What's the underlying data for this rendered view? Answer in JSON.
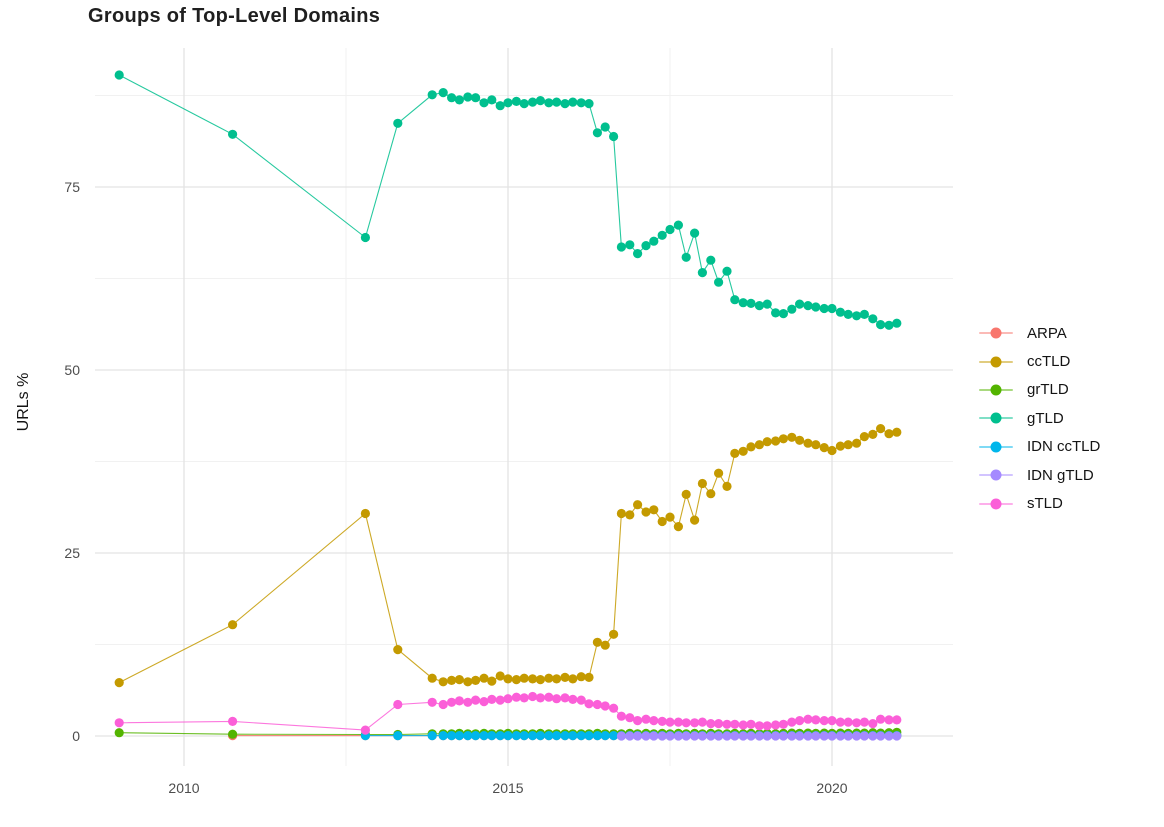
{
  "title": "Groups of Top-Level Domains",
  "y_axis": {
    "label": "URLs %",
    "ticks": [
      "0",
      "25",
      "50",
      "75"
    ]
  },
  "x_axis": {
    "ticks": [
      "2010",
      "2015",
      "2020"
    ]
  },
  "colors": {
    "background": "#FFFFFF",
    "grid_major": "#E3E3E3",
    "grid_minor": "#F1F1F1",
    "tick_label": "#4D4D4D",
    "title_text": "#1F1F1F"
  },
  "legend": {
    "position": "right",
    "items": [
      {
        "label": "ARPA",
        "color": "#F8766D"
      },
      {
        "label": "ccTLD",
        "color": "#C49A00"
      },
      {
        "label": "grTLD",
        "color": "#53B400"
      },
      {
        "label": "gTLD",
        "color": "#00BF8E"
      },
      {
        "label": "IDN ccTLD",
        "color": "#00B6EB"
      },
      {
        "label": "IDN gTLD",
        "color": "#A58AFF"
      },
      {
        "label": "sTLD",
        "color": "#FB5FD8"
      }
    ]
  },
  "chart_data": {
    "type": "line",
    "title": "Groups of Top-Level Domains",
    "xlabel": "",
    "ylabel": "URLs %",
    "xlim": [
      2008.6,
      2021.8
    ],
    "ylim": [
      -4,
      94
    ],
    "x_ticks": [
      2010,
      2015,
      2020
    ],
    "x_minor": [
      2012.5,
      2017.5
    ],
    "y_ticks": [
      0,
      25,
      50,
      75
    ],
    "y_minor": [
      12.5,
      37.5,
      62.5,
      87.5
    ],
    "grid": "major+minor",
    "legend_position": "right",
    "x_dense": [
      2014,
      2014.13,
      2014.25,
      2014.38,
      2014.5,
      2014.63,
      2014.75,
      2014.88,
      2015,
      2015.13,
      2015.25,
      2015.38,
      2015.5,
      2015.63,
      2015.75,
      2015.88,
      2016,
      2016.13,
      2016.25,
      2016.38,
      2016.5,
      2016.63,
      2016.75,
      2016.88,
      2017,
      2017.13,
      2017.25,
      2017.38,
      2017.5,
      2017.63,
      2017.75,
      2017.88,
      2018,
      2018.13,
      2018.25,
      2018.38,
      2018.5,
      2018.63,
      2018.75,
      2018.88,
      2019,
      2019.13,
      2019.25,
      2019.38,
      2019.5,
      2019.63,
      2019.75,
      2019.88,
      2020,
      2020.13,
      2020.25,
      2020.38,
      2020.5,
      2020.63,
      2020.75,
      2020.88,
      2021
    ],
    "series": [
      {
        "name": "ARPA",
        "color": "#F8766D",
        "x_pre": [
          2010.75,
          2012.8,
          2013.3,
          2013.83
        ],
        "y_pre": [
          0.05,
          0.05,
          0.05,
          0.05
        ],
        "y_dense_const": 0.05
      },
      {
        "name": "ccTLD",
        "color": "#C49A00",
        "x_pre": [
          2009,
          2010.75,
          2012.8,
          2013.3,
          2013.83
        ],
        "y_pre": [
          7.3,
          15.2,
          30.4,
          11.8,
          7.9
        ],
        "y_dense": [
          7.4,
          7.6,
          7.7,
          7.4,
          7.6,
          7.9,
          7.5,
          8.2,
          7.8,
          7.7,
          7.9,
          7.8,
          7.7,
          7.9,
          7.8,
          8.0,
          7.8,
          8.1,
          8.0,
          12.8,
          12.4,
          13.9,
          30.4,
          30.2,
          31.6,
          30.6,
          30.9,
          29.3,
          29.9,
          28.6,
          33.0,
          29.5,
          34.5,
          33.1,
          35.9,
          34.1,
          38.6,
          38.9,
          39.5,
          39.8,
          40.2,
          40.3,
          40.6,
          40.8,
          40.4,
          40.0,
          39.8,
          39.4,
          39.0,
          39.6,
          39.8,
          40.0,
          40.9,
          41.2,
          42.0,
          41.3,
          41.5
        ]
      },
      {
        "name": "grTLD",
        "color": "#53B400",
        "x_pre": [
          2009,
          2010.75,
          2012.8,
          2013.3,
          2013.83
        ],
        "y_pre": [
          0.45,
          0.25,
          0.2,
          0.2,
          0.3
        ],
        "y_dense": [
          0.3,
          0.3,
          0.35,
          0.3,
          0.3,
          0.35,
          0.3,
          0.3,
          0.35,
          0.3,
          0.3,
          0.3,
          0.35,
          0.3,
          0.3,
          0.3,
          0.3,
          0.3,
          0.3,
          0.35,
          0.3,
          0.3,
          0.3,
          0.35,
          0.3,
          0.35,
          0.3,
          0.35,
          0.3,
          0.35,
          0.3,
          0.35,
          0.3,
          0.35,
          0.3,
          0.3,
          0.35,
          0.3,
          0.35,
          0.3,
          0.35,
          0.3,
          0.35,
          0.4,
          0.35,
          0.4,
          0.35,
          0.4,
          0.35,
          0.4,
          0.35,
          0.4,
          0.4,
          0.45,
          0.4,
          0.45,
          0.5
        ]
      },
      {
        "name": "gTLD",
        "color": "#00BF8E",
        "x_pre": [
          2009,
          2010.75,
          2012.8,
          2013.3,
          2013.83
        ],
        "y_pre": [
          90.3,
          82.2,
          68.1,
          83.7,
          87.6
        ],
        "y_dense": [
          87.9,
          87.2,
          86.9,
          87.3,
          87.2,
          86.5,
          86.9,
          86.1,
          86.5,
          86.7,
          86.4,
          86.6,
          86.8,
          86.5,
          86.6,
          86.4,
          86.6,
          86.5,
          86.4,
          82.4,
          83.2,
          81.9,
          66.8,
          67.1,
          65.9,
          67.0,
          67.6,
          68.4,
          69.2,
          69.8,
          65.4,
          68.7,
          63.3,
          65.0,
          62.0,
          63.5,
          59.6,
          59.2,
          59.1,
          58.8,
          59.0,
          57.8,
          57.7,
          58.3,
          59.0,
          58.8,
          58.6,
          58.4,
          58.4,
          57.9,
          57.6,
          57.4,
          57.6,
          57.0,
          56.2,
          56.1,
          56.4
        ]
      },
      {
        "name": "IDN ccTLD",
        "color": "#00B6EB",
        "x_pre": [
          2012.8,
          2013.3,
          2013.83
        ],
        "y_pre": [
          0.05,
          0.05,
          0.05
        ],
        "y_dense_const": 0.05
      },
      {
        "name": "IDN gTLD",
        "color": "#A58AFF",
        "x_pre": [],
        "y_pre": [],
        "dense_start": 2016.75,
        "y_dense_const": 0.0
      },
      {
        "name": "sTLD",
        "color": "#FB5FD8",
        "x_pre": [
          2009,
          2010.75,
          2012.8,
          2013.3,
          2013.83
        ],
        "y_pre": [
          1.8,
          2.0,
          0.8,
          4.3,
          4.6
        ],
        "y_dense": [
          4.3,
          4.6,
          4.8,
          4.6,
          4.9,
          4.7,
          5.0,
          4.9,
          5.1,
          5.3,
          5.2,
          5.4,
          5.2,
          5.3,
          5.1,
          5.2,
          5.0,
          4.9,
          4.4,
          4.3,
          4.1,
          3.8,
          2.7,
          2.5,
          2.1,
          2.3,
          2.1,
          2.0,
          1.9,
          1.9,
          1.8,
          1.8,
          1.9,
          1.7,
          1.7,
          1.6,
          1.6,
          1.5,
          1.6,
          1.4,
          1.4,
          1.5,
          1.6,
          1.9,
          2.1,
          2.3,
          2.2,
          2.1,
          2.1,
          1.9,
          1.9,
          1.8,
          1.9,
          1.7,
          2.3,
          2.2,
          2.2
        ]
      }
    ]
  }
}
